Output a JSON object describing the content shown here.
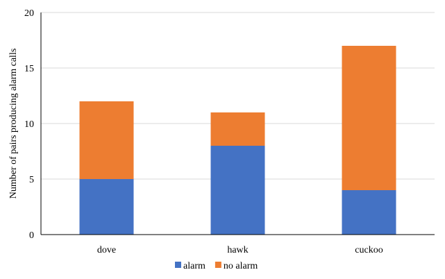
{
  "chart_data": {
    "type": "bar",
    "stacked": true,
    "categories": [
      "dove",
      "hawk",
      "cuckoo"
    ],
    "series": [
      {
        "name": "alarm",
        "values": [
          5,
          8,
          4
        ],
        "color": "#4472C4"
      },
      {
        "name": "no alarm",
        "values": [
          7,
          3,
          13
        ],
        "color": "#ED7D31"
      }
    ],
    "title": "",
    "xlabel": "",
    "ylabel": "Number of pairs producing alarm calls",
    "ylim": [
      0,
      20
    ],
    "yticks": [
      0,
      5,
      10,
      15,
      20
    ],
    "grid": true,
    "legend_position": "bottom"
  }
}
